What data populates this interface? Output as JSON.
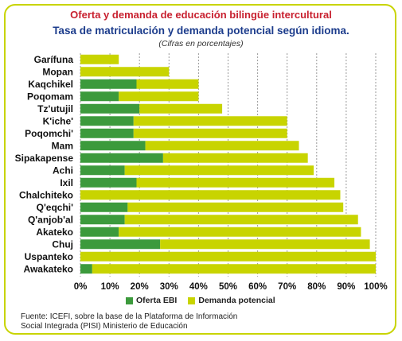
{
  "header": {
    "title": "Oferta y demanda de educación bilingüe intercultural",
    "subtitle": "Tasa de matriculación y demanda potencial según idioma.",
    "note": "(Cifras en porcentajes)"
  },
  "legend": {
    "oferta": "Oferta EBI",
    "demanda": "Demanda potencial"
  },
  "source": {
    "line1": "Fuente: ICEFI, sobre la base de la Plataforma de Información",
    "line2": "Social Integrada (PISI) Ministerio de Educación"
  },
  "colors": {
    "oferta": "#3c9a3c",
    "demanda": "#c8d400",
    "border": "#c8d400",
    "title": "#c8202f",
    "subtitle": "#1c3c8c"
  },
  "chart_data": {
    "type": "bar",
    "orientation": "horizontal",
    "stacked": true,
    "categories": [
      "Garífuna",
      "Mopan",
      "Kaqchikel",
      "Poqomam",
      "Tz'utujil",
      "K'iche'",
      "Poqomchi'",
      "Mam",
      "Sipakapense",
      "Achi",
      "Ixil",
      "Chalchiteko",
      "Q'eqchi'",
      "Q'anjob'al",
      "Akateko",
      "Chuj",
      "Uspanteko",
      "Awakateko"
    ],
    "series": [
      {
        "name": "Oferta EBI",
        "values": [
          0,
          0,
          19,
          13,
          20,
          18,
          18,
          22,
          28,
          15,
          19,
          0,
          16,
          15,
          13,
          27,
          0,
          4
        ]
      },
      {
        "name": "Demanda potencial",
        "values": [
          13,
          30,
          21,
          27,
          28,
          52,
          52,
          52,
          49,
          64,
          67,
          88,
          73,
          79,
          82,
          71,
          100,
          96
        ]
      }
    ],
    "xlim": [
      0,
      100
    ],
    "xticks": [
      "0%",
      "10%",
      "20%",
      "30%",
      "40%",
      "50%",
      "60%",
      "70%",
      "80%",
      "90%",
      "100%"
    ],
    "grid": "vertical dotted",
    "legend_position": "bottom"
  }
}
